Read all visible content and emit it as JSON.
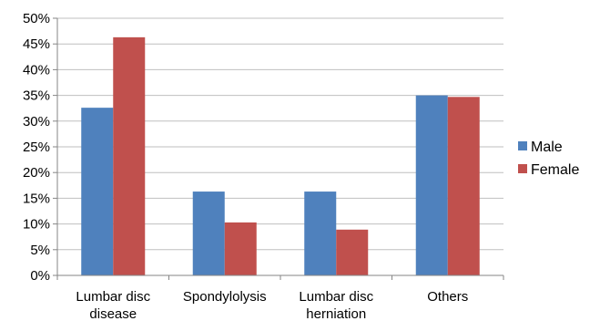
{
  "chart_data": {
    "type": "bar",
    "categories": [
      [
        "Lumbar disc",
        "disease"
      ],
      [
        "Spondylolysis"
      ],
      [
        "Lumbar disc",
        "herniation"
      ],
      [
        "Others"
      ]
    ],
    "series": [
      {
        "name": "Male",
        "color": "#4F81BD",
        "values": [
          32.6,
          16.3,
          16.3,
          35.0
        ]
      },
      {
        "name": "Female",
        "color": "#C0504D",
        "values": [
          46.3,
          10.3,
          8.9,
          34.7
        ]
      }
    ],
    "ylim": [
      0,
      50
    ],
    "yticks": [
      "0%",
      "5%",
      "10%",
      "15%",
      "20%",
      "25%",
      "30%",
      "35%",
      "40%",
      "45%",
      "50%"
    ],
    "ytick_values": [
      0,
      5,
      10,
      15,
      20,
      25,
      30,
      35,
      40,
      45,
      50
    ],
    "grid": true,
    "legend_position": "right"
  }
}
